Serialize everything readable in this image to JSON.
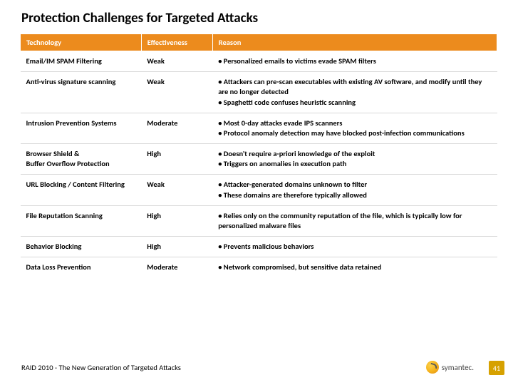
{
  "title": "Protection Challenges for Targeted Attacks",
  "columns": [
    "Technology",
    "Effectiveness",
    "Reason"
  ],
  "rows": [
    {
      "tech": "Email/IM SPAM Filtering",
      "eff": "Weak",
      "reason": [
        "• Personalized emails to victims evade SPAM filters"
      ]
    },
    {
      "tech": "Anti-virus signature scanning",
      "eff": "Weak",
      "reason": [
        "• Attackers can pre-scan executables with existing AV software, and modify until they are no longer detected",
        "• Spaghetti code confuses heuristic scanning"
      ]
    },
    {
      "tech": "Intrusion Prevention Systems",
      "eff": "Moderate",
      "reason": [
        "• Most 0-day attacks evade IPS scanners",
        "• Protocol anomaly detection may have blocked post-infection communications"
      ]
    },
    {
      "tech": "Browser Shield &\nBuffer Overflow Protection",
      "eff": "High",
      "reason": [
        "• Doesn't require a-priori knowledge of the exploit",
        "• Triggers on anomalies in execution path"
      ]
    },
    {
      "tech": "URL Blocking / Content Filtering",
      "eff": "Weak",
      "reason": [
        "• Attacker-generated domains unknown to filter",
        "• These domains are therefore typically allowed"
      ]
    },
    {
      "tech": "File Reputation Scanning",
      "eff": "High",
      "reason": [
        "• Relies only on the community reputation of the file, which is typically low for personalized malware files"
      ]
    },
    {
      "tech": "Behavior Blocking",
      "eff": "High",
      "reason": [
        "• Prevents malicious behaviors"
      ]
    },
    {
      "tech": "Data Loss Prevention",
      "eff": "Moderate",
      "reason": [
        "• Network compromised, but sensitive data retained"
      ]
    }
  ],
  "footer": "RAID 2010 - The New Generation of Targeted Attacks",
  "logo_text": "symantec.",
  "page_number": "41",
  "colors": {
    "header_bg": "#ec8b1d",
    "header_fg": "#ffffff",
    "row_border": "#d9d9d9",
    "pagenum_bg": "#d6a100"
  }
}
